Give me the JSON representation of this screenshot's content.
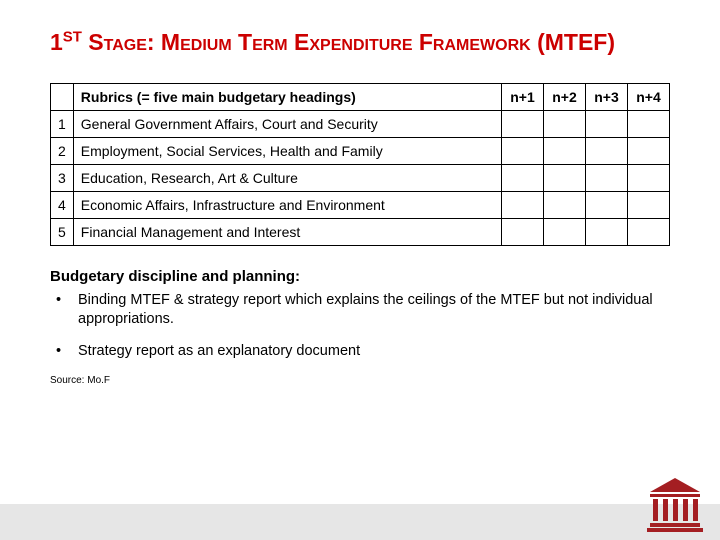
{
  "title_html": "1<span class='sup'>ST</span> Stage: Medium Term Expenditure Framework (MTEF)",
  "colors": {
    "accent": "#cc0000",
    "table_border": "#000000",
    "footer_bg": "#e6e6e6",
    "text": "#000000",
    "logo_roof": "#a41e22",
    "logo_col": "#a41e22"
  },
  "table": {
    "headers": {
      "rubric": "Rubrics (= five main budgetary headings)",
      "years": [
        "n+1",
        "n+2",
        "n+3",
        "n+4"
      ]
    },
    "rows": [
      {
        "n": "1",
        "label": "General Government Affairs, Court and Security"
      },
      {
        "n": "2",
        "label": "Employment, Social Services, Health and Family"
      },
      {
        "n": "3",
        "label": "Education, Research, Art & Culture"
      },
      {
        "n": "4",
        "label": "Economic Affairs, Infrastructure and Environment"
      },
      {
        "n": "5",
        "label": "Financial Management and Interest"
      }
    ]
  },
  "section_heading": "Budgetary discipline and planning:",
  "bullets": [
    "Binding MTEF & strategy report which explains the ceilings of the MTEF but not individual appropriations.",
    "Strategy report as an explanatory document"
  ],
  "source": "Source: Mo.F"
}
